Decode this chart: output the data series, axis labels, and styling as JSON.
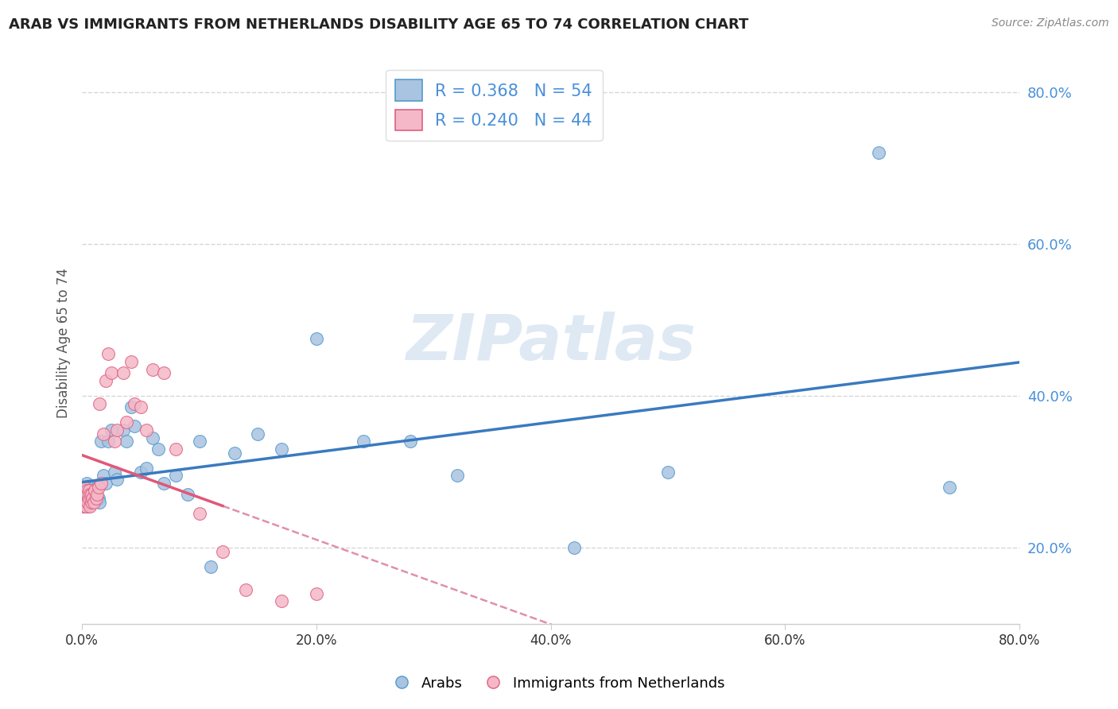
{
  "title": "ARAB VS IMMIGRANTS FROM NETHERLANDS DISABILITY AGE 65 TO 74 CORRELATION CHART",
  "source": "Source: ZipAtlas.com",
  "ylabel": "Disability Age 65 to 74",
  "watermark": "ZIPatlas",
  "blue_R": "0.368",
  "blue_N": "54",
  "pink_R": "0.240",
  "pink_N": "44",
  "blue_label": "Arabs",
  "pink_label": "Immigrants from Netherlands",
  "xlim": [
    0.0,
    0.8
  ],
  "ylim": [
    0.1,
    0.84
  ],
  "xticks": [
    0.0,
    0.2,
    0.4,
    0.6,
    0.8
  ],
  "yticks": [
    0.2,
    0.4,
    0.6,
    0.8
  ],
  "xtick_labels": [
    "0.0%",
    "20.0%",
    "40.0%",
    "60.0%",
    "80.0%"
  ],
  "ytick_labels": [
    "20.0%",
    "40.0%",
    "60.0%",
    "80.0%"
  ],
  "blue_color": "#a8c4e0",
  "blue_edge_color": "#5599cc",
  "blue_line_color": "#3a7abf",
  "pink_color": "#f4b8c8",
  "pink_edge_color": "#e06080",
  "pink_line_color": "#e05878",
  "dashed_line_color": "#e090a8",
  "background": "#ffffff",
  "legend_text_color": "#4a90d9",
  "blue_x": [
    0.001,
    0.002,
    0.002,
    0.003,
    0.003,
    0.004,
    0.004,
    0.005,
    0.005,
    0.006,
    0.006,
    0.007,
    0.007,
    0.008,
    0.008,
    0.009,
    0.01,
    0.01,
    0.011,
    0.012,
    0.013,
    0.014,
    0.015,
    0.016,
    0.018,
    0.02,
    0.022,
    0.025,
    0.028,
    0.03,
    0.035,
    0.038,
    0.042,
    0.045,
    0.05,
    0.055,
    0.06,
    0.065,
    0.07,
    0.08,
    0.09,
    0.1,
    0.11,
    0.13,
    0.15,
    0.17,
    0.2,
    0.24,
    0.28,
    0.32,
    0.42,
    0.5,
    0.68,
    0.74
  ],
  "blue_y": [
    0.27,
    0.255,
    0.28,
    0.265,
    0.275,
    0.26,
    0.285,
    0.255,
    0.27,
    0.275,
    0.265,
    0.27,
    0.28,
    0.26,
    0.275,
    0.27,
    0.265,
    0.28,
    0.27,
    0.275,
    0.28,
    0.265,
    0.26,
    0.34,
    0.295,
    0.285,
    0.34,
    0.355,
    0.3,
    0.29,
    0.355,
    0.34,
    0.385,
    0.36,
    0.3,
    0.305,
    0.345,
    0.33,
    0.285,
    0.295,
    0.27,
    0.34,
    0.175,
    0.325,
    0.35,
    0.33,
    0.475,
    0.34,
    0.34,
    0.295,
    0.2,
    0.3,
    0.72,
    0.28
  ],
  "pink_x": [
    0.001,
    0.001,
    0.002,
    0.002,
    0.003,
    0.003,
    0.004,
    0.004,
    0.005,
    0.005,
    0.006,
    0.006,
    0.007,
    0.007,
    0.008,
    0.008,
    0.009,
    0.01,
    0.011,
    0.012,
    0.013,
    0.014,
    0.015,
    0.016,
    0.018,
    0.02,
    0.022,
    0.025,
    0.028,
    0.03,
    0.035,
    0.038,
    0.042,
    0.045,
    0.05,
    0.055,
    0.06,
    0.07,
    0.08,
    0.1,
    0.12,
    0.14,
    0.17,
    0.2
  ],
  "pink_y": [
    0.27,
    0.255,
    0.265,
    0.28,
    0.255,
    0.27,
    0.265,
    0.275,
    0.26,
    0.27,
    0.265,
    0.275,
    0.255,
    0.27,
    0.26,
    0.27,
    0.265,
    0.26,
    0.275,
    0.265,
    0.27,
    0.28,
    0.39,
    0.285,
    0.35,
    0.42,
    0.455,
    0.43,
    0.34,
    0.355,
    0.43,
    0.365,
    0.445,
    0.39,
    0.385,
    0.355,
    0.435,
    0.43,
    0.33,
    0.245,
    0.195,
    0.145,
    0.13,
    0.14
  ]
}
